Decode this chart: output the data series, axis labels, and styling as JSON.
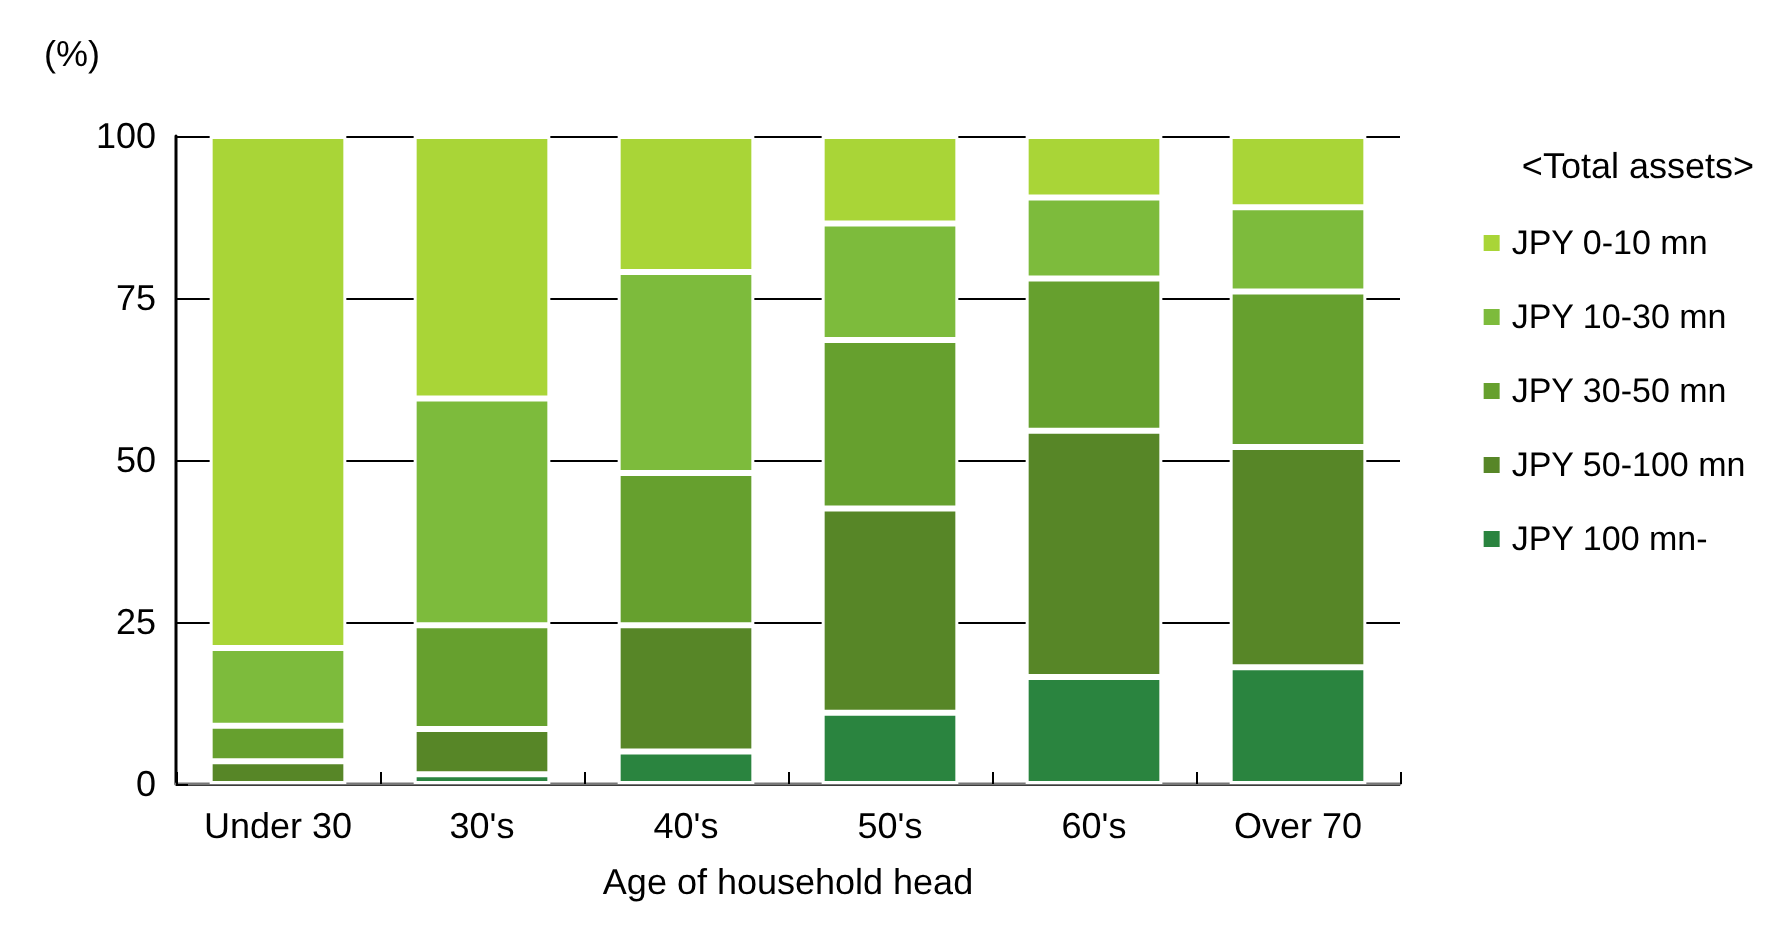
{
  "chart_data": {
    "type": "bar",
    "stacked": true,
    "ylabel": "(%)",
    "xlabel": "Age of household head",
    "legend_title": "<Total assets>",
    "legend": "right",
    "grid": "y",
    "categories": [
      "Under 30",
      "30's",
      "40's",
      "50's",
      "60's",
      "Over 70"
    ],
    "ylim": [
      0,
      100
    ],
    "yticks": [
      0,
      25,
      50,
      75,
      100
    ],
    "series": [
      {
        "name": "JPY 100 mn-",
        "color": "#2a843f",
        "values": [
          null,
          1.5,
          5,
          11,
          16.5,
          18
        ]
      },
      {
        "name": "JPY 50-100 mn",
        "color": "#578627",
        "values": [
          3.5,
          7,
          19.5,
          31.5,
          38,
          34
        ]
      },
      {
        "name": "JPY 30-50 mn",
        "color": "#66a02e",
        "values": [
          5.5,
          16,
          23.5,
          26,
          23.5,
          24
        ]
      },
      {
        "name": "JPY 10-30 mn",
        "color": "#7dbb3c",
        "values": [
          12,
          35,
          31,
          18,
          12.5,
          13
        ]
      },
      {
        "name": "JPY 0-10 mn",
        "color": "#a9d537",
        "values": [
          79,
          40.5,
          21,
          13.5,
          9.5,
          11
        ]
      }
    ]
  }
}
